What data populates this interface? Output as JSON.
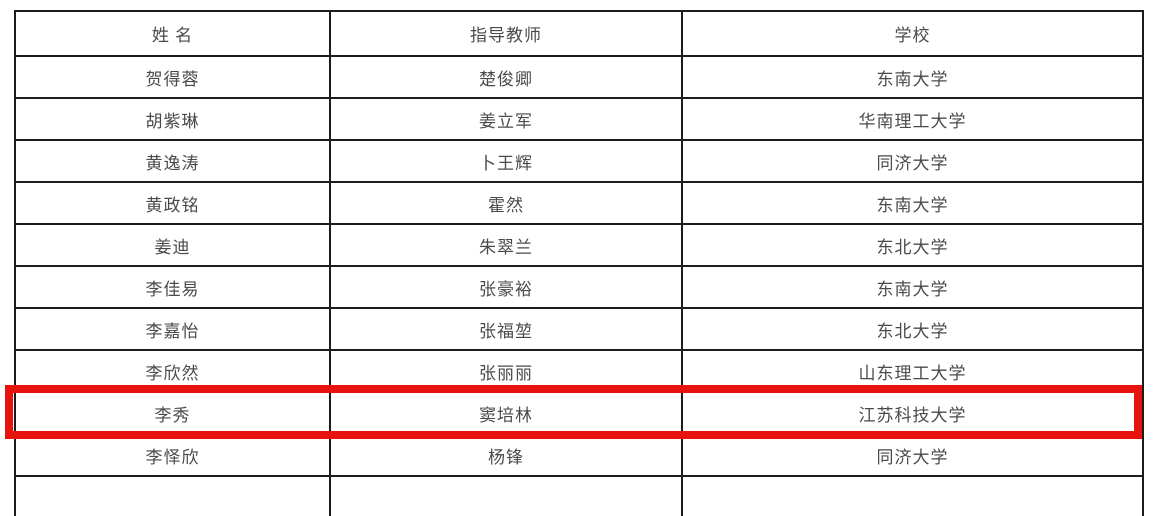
{
  "table": {
    "columns": [
      {
        "key": "name",
        "label": "姓 名"
      },
      {
        "key": "teacher",
        "label": "指导教师"
      },
      {
        "key": "school",
        "label": "学校"
      }
    ],
    "rows": [
      {
        "name": "贺得蓉",
        "teacher": "楚俊卿",
        "school": "东南大学",
        "highlighted": false
      },
      {
        "name": "胡紫琳",
        "teacher": "姜立军",
        "school": "华南理工大学",
        "highlighted": false
      },
      {
        "name": "黄逸涛",
        "teacher": "卜王辉",
        "school": "同济大学",
        "highlighted": false
      },
      {
        "name": "黄政铭",
        "teacher": "霍然",
        "school": "东南大学",
        "highlighted": false
      },
      {
        "name": "姜迪",
        "teacher": "朱翠兰",
        "school": "东北大学",
        "highlighted": false
      },
      {
        "name": "李佳易",
        "teacher": "张豪裕",
        "school": "东南大学",
        "highlighted": false
      },
      {
        "name": "李嘉怡",
        "teacher": "张福堃",
        "school": "东北大学",
        "highlighted": false
      },
      {
        "name": "李欣然",
        "teacher": "张丽丽",
        "school": "山东理工大学",
        "highlighted": false
      },
      {
        "name": "李秀",
        "teacher": "窦培林",
        "school": "江苏科技大学",
        "highlighted": true
      },
      {
        "name": "李怿欣",
        "teacher": "杨锋",
        "school": "同济大学",
        "highlighted": false
      }
    ]
  },
  "colors": {
    "highlight_border": "#e8130c",
    "table_border": "#1c1c1c",
    "text": "#4a4a4a"
  }
}
